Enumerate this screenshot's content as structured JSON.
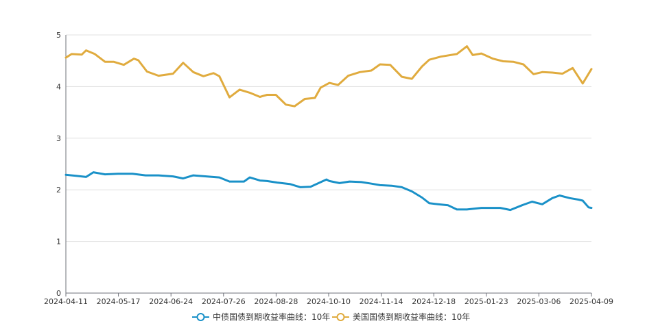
{
  "chart_data": {
    "type": "line",
    "title": "",
    "xlabel": "",
    "ylabel": "",
    "ylim": [
      0,
      5
    ],
    "y_ticks": [
      0,
      1,
      2,
      3,
      4,
      5
    ],
    "x_tick_labels": [
      "2024-04-11",
      "2024-05-17",
      "2024-06-24",
      "2024-07-26",
      "2024-08-28",
      "2024-10-10",
      "2024-11-14",
      "2024-12-18",
      "2025-01-23",
      "2025-03-06",
      "2025-04-09"
    ],
    "x_range": [
      "2024-04-11",
      "2025-04-09"
    ],
    "grid": "horizontal",
    "legend_position": "bottom-center",
    "series": [
      {
        "name": "中债国债到期收益率曲线：10年",
        "color": "#1a91c8",
        "points": [
          [
            "2024-04-11",
            2.29
          ],
          [
            "2024-04-18",
            2.27
          ],
          [
            "2024-04-25",
            2.25
          ],
          [
            "2024-04-30",
            2.34
          ],
          [
            "2024-05-08",
            2.3
          ],
          [
            "2024-05-17",
            2.31
          ],
          [
            "2024-05-27",
            2.31
          ],
          [
            "2024-06-05",
            2.28
          ],
          [
            "2024-06-14",
            2.28
          ],
          [
            "2024-06-24",
            2.26
          ],
          [
            "2024-07-01",
            2.22
          ],
          [
            "2024-07-08",
            2.28
          ],
          [
            "2024-07-17",
            2.26
          ],
          [
            "2024-07-26",
            2.24
          ],
          [
            "2024-08-02",
            2.16
          ],
          [
            "2024-08-12",
            2.16
          ],
          [
            "2024-08-16",
            2.24
          ],
          [
            "2024-08-23",
            2.18
          ],
          [
            "2024-08-28",
            2.17
          ],
          [
            "2024-09-04",
            2.14
          ],
          [
            "2024-09-13",
            2.11
          ],
          [
            "2024-09-20",
            2.05
          ],
          [
            "2024-09-27",
            2.06
          ],
          [
            "2024-10-08",
            2.2
          ],
          [
            "2024-10-10",
            2.17
          ],
          [
            "2024-10-17",
            2.13
          ],
          [
            "2024-10-24",
            2.16
          ],
          [
            "2024-11-01",
            2.15
          ],
          [
            "2024-11-08",
            2.12
          ],
          [
            "2024-11-14",
            2.09
          ],
          [
            "2024-11-22",
            2.08
          ],
          [
            "2024-11-29",
            2.05
          ],
          [
            "2024-12-06",
            1.97
          ],
          [
            "2024-12-13",
            1.85
          ],
          [
            "2024-12-18",
            1.74
          ],
          [
            "2024-12-24",
            1.72
          ],
          [
            "2024-12-31",
            1.7
          ],
          [
            "2025-01-06",
            1.62
          ],
          [
            "2025-01-13",
            1.62
          ],
          [
            "2025-01-23",
            1.65
          ],
          [
            "2025-02-05",
            1.65
          ],
          [
            "2025-02-12",
            1.61
          ],
          [
            "2025-02-20",
            1.7
          ],
          [
            "2025-02-27",
            1.77
          ],
          [
            "2025-03-06",
            1.72
          ],
          [
            "2025-03-13",
            1.84
          ],
          [
            "2025-03-18",
            1.89
          ],
          [
            "2025-03-25",
            1.84
          ],
          [
            "2025-03-31",
            1.81
          ],
          [
            "2025-04-03",
            1.79
          ],
          [
            "2025-04-07",
            1.66
          ],
          [
            "2025-04-09",
            1.65
          ]
        ]
      },
      {
        "name": "美国国债到期收益率曲线：10年",
        "color": "#e0ab3e",
        "points": [
          [
            "2024-04-11",
            4.56
          ],
          [
            "2024-04-15",
            4.63
          ],
          [
            "2024-04-22",
            4.62
          ],
          [
            "2024-04-25",
            4.7
          ],
          [
            "2024-05-01",
            4.63
          ],
          [
            "2024-05-08",
            4.48
          ],
          [
            "2024-05-14",
            4.48
          ],
          [
            "2024-05-21",
            4.42
          ],
          [
            "2024-05-28",
            4.54
          ],
          [
            "2024-05-31",
            4.51
          ],
          [
            "2024-06-06",
            4.29
          ],
          [
            "2024-06-14",
            4.21
          ],
          [
            "2024-06-24",
            4.25
          ],
          [
            "2024-07-01",
            4.46
          ],
          [
            "2024-07-08",
            4.28
          ],
          [
            "2024-07-15",
            4.2
          ],
          [
            "2024-07-22",
            4.26
          ],
          [
            "2024-07-26",
            4.2
          ],
          [
            "2024-08-02",
            3.79
          ],
          [
            "2024-08-09",
            3.94
          ],
          [
            "2024-08-16",
            3.88
          ],
          [
            "2024-08-23",
            3.8
          ],
          [
            "2024-08-28",
            3.84
          ],
          [
            "2024-09-03",
            3.84
          ],
          [
            "2024-09-10",
            3.65
          ],
          [
            "2024-09-16",
            3.62
          ],
          [
            "2024-09-23",
            3.76
          ],
          [
            "2024-09-30",
            3.78
          ],
          [
            "2024-10-04",
            3.98
          ],
          [
            "2024-10-10",
            4.07
          ],
          [
            "2024-10-16",
            4.03
          ],
          [
            "2024-10-23",
            4.21
          ],
          [
            "2024-10-31",
            4.28
          ],
          [
            "2024-11-08",
            4.31
          ],
          [
            "2024-11-14",
            4.43
          ],
          [
            "2024-11-21",
            4.42
          ],
          [
            "2024-11-29",
            4.19
          ],
          [
            "2024-12-06",
            4.15
          ],
          [
            "2024-12-13",
            4.39
          ],
          [
            "2024-12-18",
            4.52
          ],
          [
            "2024-12-26",
            4.58
          ],
          [
            "2025-01-06",
            4.63
          ],
          [
            "2025-01-13",
            4.78
          ],
          [
            "2025-01-17",
            4.61
          ],
          [
            "2025-01-23",
            4.64
          ],
          [
            "2025-01-31",
            4.54
          ],
          [
            "2025-02-07",
            4.49
          ],
          [
            "2025-02-14",
            4.48
          ],
          [
            "2025-02-21",
            4.43
          ],
          [
            "2025-02-28",
            4.24
          ],
          [
            "2025-03-06",
            4.28
          ],
          [
            "2025-03-13",
            4.27
          ],
          [
            "2025-03-20",
            4.25
          ],
          [
            "2025-03-27",
            4.36
          ],
          [
            "2025-04-03",
            4.06
          ],
          [
            "2025-04-09",
            4.34
          ]
        ]
      }
    ]
  }
}
